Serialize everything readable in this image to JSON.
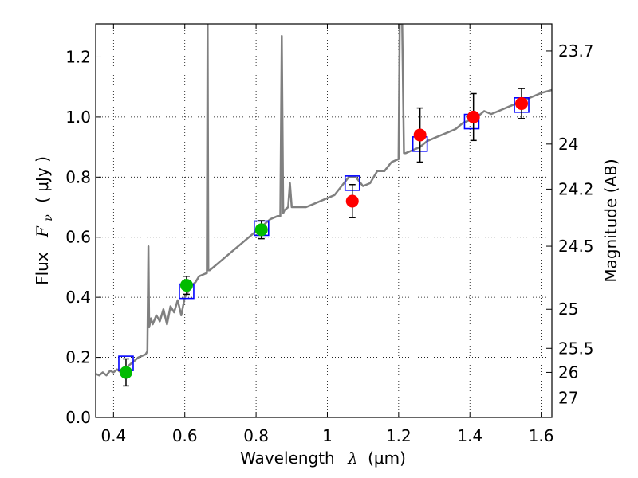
{
  "chart_data": {
    "type": "scatter",
    "xlabel": "Wavelength",
    "xlabel_symbol": "λ",
    "xlabel_unit": "(μm)",
    "ylabel": "Flux",
    "ylabel_symbol": "F",
    "ylabel_subscript": "ν",
    "ylabel_unit": "( μJy )",
    "y2label": "Magnitude (AB)",
    "xlim": [
      0.35,
      1.63
    ],
    "ylim": [
      0.0,
      1.31
    ],
    "grid": true,
    "grid_style": "dotted",
    "x_ticks": [
      {
        "value": 0.4,
        "label": "0.4"
      },
      {
        "value": 0.6,
        "label": "0.6"
      },
      {
        "value": 0.8,
        "label": "0.8"
      },
      {
        "value": 1.0,
        "label": "1"
      },
      {
        "value": 1.2,
        "label": "1.2"
      },
      {
        "value": 1.4,
        "label": "1.4"
      },
      {
        "value": 1.6,
        "label": "1.6"
      }
    ],
    "y_ticks": [
      {
        "value": 0.0,
        "label": "0.0"
      },
      {
        "value": 0.2,
        "label": "0.2"
      },
      {
        "value": 0.4,
        "label": "0.4"
      },
      {
        "value": 0.6,
        "label": "0.6"
      },
      {
        "value": 0.8,
        "label": "0.8"
      },
      {
        "value": 1.0,
        "label": "1.0"
      },
      {
        "value": 1.2,
        "label": "1.2"
      }
    ],
    "mag_ticks": [
      {
        "flux": 1.22,
        "label": "23.7"
      },
      {
        "flux": 0.91,
        "label": "24"
      },
      {
        "flux": 0.76,
        "label": "24.2"
      },
      {
        "flux": 0.57,
        "label": "24.5"
      },
      {
        "flux": 0.36,
        "label": "25"
      },
      {
        "flux": 0.23,
        "label": "25.5"
      },
      {
        "flux": 0.15,
        "label": "26"
      },
      {
        "flux": 0.065,
        "label": "27"
      }
    ],
    "colors": {
      "spectrum": "#808080",
      "model_box": "#0000ff",
      "green_points": "#00bb00",
      "red_points": "#ff0000",
      "errorbar": "#000000"
    },
    "series": [
      {
        "name": "model_spectrum",
        "type": "line",
        "points": [
          [
            0.35,
            0.145
          ],
          [
            0.36,
            0.14
          ],
          [
            0.37,
            0.15
          ],
          [
            0.38,
            0.14
          ],
          [
            0.39,
            0.155
          ],
          [
            0.4,
            0.15
          ],
          [
            0.41,
            0.16
          ],
          [
            0.42,
            0.15
          ],
          [
            0.43,
            0.16
          ],
          [
            0.44,
            0.17
          ],
          [
            0.45,
            0.18
          ],
          [
            0.46,
            0.19
          ],
          [
            0.47,
            0.2
          ],
          [
            0.48,
            0.205
          ],
          [
            0.49,
            0.21
          ],
          [
            0.495,
            0.22
          ],
          [
            0.498,
            0.57
          ],
          [
            0.5,
            0.3
          ],
          [
            0.505,
            0.33
          ],
          [
            0.51,
            0.31
          ],
          [
            0.52,
            0.34
          ],
          [
            0.53,
            0.32
          ],
          [
            0.54,
            0.36
          ],
          [
            0.55,
            0.31
          ],
          [
            0.56,
            0.37
          ],
          [
            0.57,
            0.35
          ],
          [
            0.58,
            0.39
          ],
          [
            0.59,
            0.34
          ],
          [
            0.6,
            0.4
          ],
          [
            0.61,
            0.42
          ],
          [
            0.62,
            0.44
          ],
          [
            0.63,
            0.45
          ],
          [
            0.64,
            0.47
          ],
          [
            0.65,
            0.475
          ],
          [
            0.66,
            0.48
          ],
          [
            0.662,
            0.48
          ],
          [
            0.664,
            1.31
          ],
          [
            0.666,
            0.49
          ],
          [
            0.67,
            0.49
          ],
          [
            0.68,
            0.5
          ],
          [
            0.7,
            0.52
          ],
          [
            0.72,
            0.54
          ],
          [
            0.74,
            0.56
          ],
          [
            0.76,
            0.58
          ],
          [
            0.78,
            0.6
          ],
          [
            0.8,
            0.62
          ],
          [
            0.82,
            0.64
          ],
          [
            0.84,
            0.66
          ],
          [
            0.86,
            0.67
          ],
          [
            0.868,
            0.67
          ],
          [
            0.872,
            1.27
          ],
          [
            0.876,
            0.68
          ],
          [
            0.88,
            0.69
          ],
          [
            0.89,
            0.7
          ],
          [
            0.895,
            0.78
          ],
          [
            0.9,
            0.7
          ],
          [
            0.92,
            0.7
          ],
          [
            0.94,
            0.7
          ],
          [
            0.96,
            0.71
          ],
          [
            0.98,
            0.72
          ],
          [
            1.0,
            0.73
          ],
          [
            1.02,
            0.74
          ],
          [
            1.04,
            0.77
          ],
          [
            1.06,
            0.8
          ],
          [
            1.08,
            0.8
          ],
          [
            1.1,
            0.77
          ],
          [
            1.12,
            0.78
          ],
          [
            1.14,
            0.82
          ],
          [
            1.16,
            0.82
          ],
          [
            1.18,
            0.85
          ],
          [
            1.2,
            0.86
          ],
          [
            1.203,
            1.31
          ],
          [
            1.21,
            1.31
          ],
          [
            1.215,
            0.88
          ],
          [
            1.22,
            0.88
          ],
          [
            1.24,
            0.89
          ],
          [
            1.26,
            0.9
          ],
          [
            1.28,
            0.92
          ],
          [
            1.3,
            0.93
          ],
          [
            1.32,
            0.94
          ],
          [
            1.34,
            0.95
          ],
          [
            1.36,
            0.96
          ],
          [
            1.38,
            0.98
          ],
          [
            1.4,
            0.99
          ],
          [
            1.42,
            1.0
          ],
          [
            1.44,
            1.02
          ],
          [
            1.46,
            1.01
          ],
          [
            1.48,
            1.02
          ],
          [
            1.5,
            1.03
          ],
          [
            1.52,
            1.04
          ],
          [
            1.54,
            1.05
          ],
          [
            1.56,
            1.06
          ],
          [
            1.58,
            1.07
          ],
          [
            1.6,
            1.08
          ],
          [
            1.63,
            1.09
          ]
        ]
      },
      {
        "name": "model_photometry",
        "type": "open_square",
        "points": [
          [
            0.435,
            0.18
          ],
          [
            0.605,
            0.42
          ],
          [
            0.815,
            0.63
          ],
          [
            1.07,
            0.78
          ],
          [
            1.26,
            0.91
          ],
          [
            1.405,
            0.985
          ],
          [
            1.545,
            1.04
          ]
        ]
      },
      {
        "name": "observed_green",
        "type": "point",
        "points": [
          {
            "x": 0.435,
            "y": 0.15,
            "yerr": 0.045
          },
          {
            "x": 0.605,
            "y": 0.44,
            "yerr": 0.03
          },
          {
            "x": 0.815,
            "y": 0.625,
            "yerr": 0.03
          }
        ]
      },
      {
        "name": "observed_red",
        "type": "point",
        "points": [
          {
            "x": 1.07,
            "y": 0.72,
            "yerr": 0.055
          },
          {
            "x": 1.26,
            "y": 0.94,
            "yerr": 0.09
          },
          {
            "x": 1.41,
            "y": 1.0,
            "yerr": 0.078
          },
          {
            "x": 1.545,
            "y": 1.045,
            "yerr": 0.05
          }
        ]
      }
    ]
  }
}
